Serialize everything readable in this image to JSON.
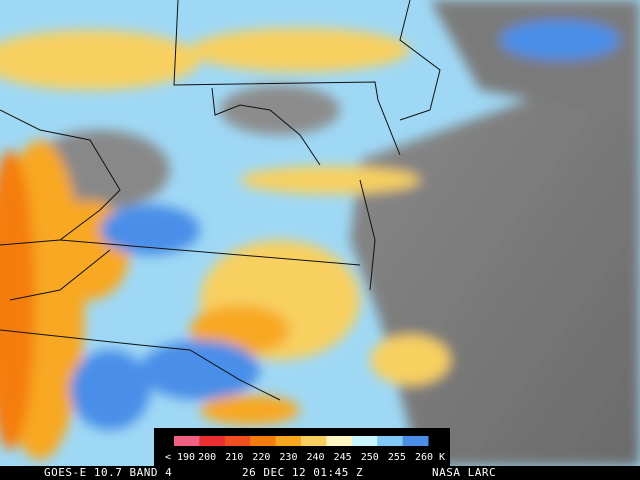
{
  "colorbar": {
    "labels": [
      "< 190",
      "200",
      "210",
      "220",
      "230",
      "240",
      "245",
      "250",
      "255",
      "260"
    ],
    "unit": "K",
    "colors": [
      "#f06080",
      "#e83030",
      "#f05020",
      "#f57d10",
      "#f8a820",
      "#f7d060",
      "#fff5c0",
      "#c8f5ff",
      "#80c8f8",
      "#4a8ee8"
    ]
  },
  "footer": {
    "satellite": "GOES-E 10.7 BAND 4",
    "time": "26 DEC 12 01:45 Z",
    "source": "NASA LARC"
  }
}
